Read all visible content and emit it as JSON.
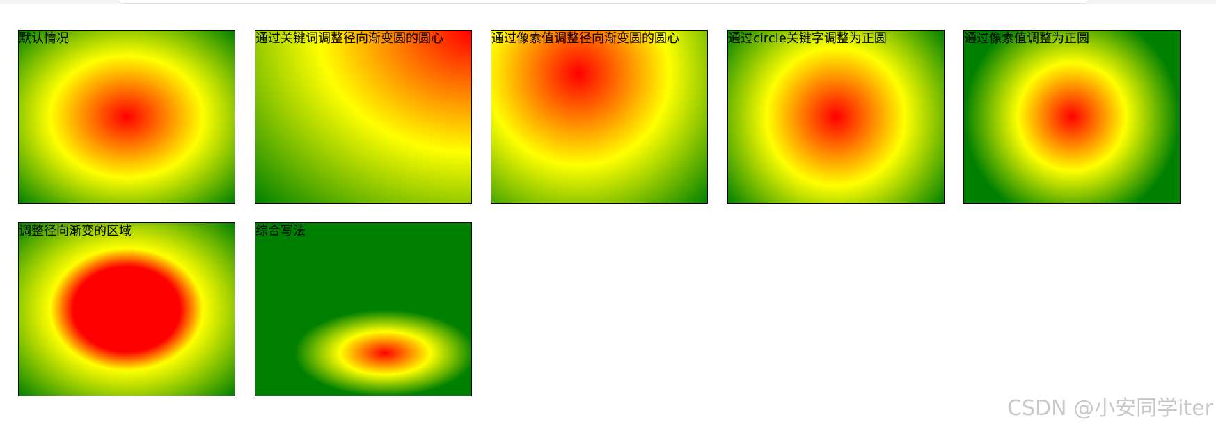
{
  "boxes": [
    {
      "label": "默认情况"
    },
    {
      "label": "通过关键词调整径向渐变圆的圆心"
    },
    {
      "label": "通过像素值调整径向渐变圆的圆心"
    },
    {
      "label": "通过circle关键字调整为正圆"
    },
    {
      "label": "通过像素值调整为正圆"
    },
    {
      "label": "调整径向渐变的区域"
    },
    {
      "label": "综合写法"
    }
  ],
  "gradient_colors": [
    "#ff0000",
    "#ffff00",
    "#008000"
  ],
  "watermark": "CSDN @小安同学iter"
}
